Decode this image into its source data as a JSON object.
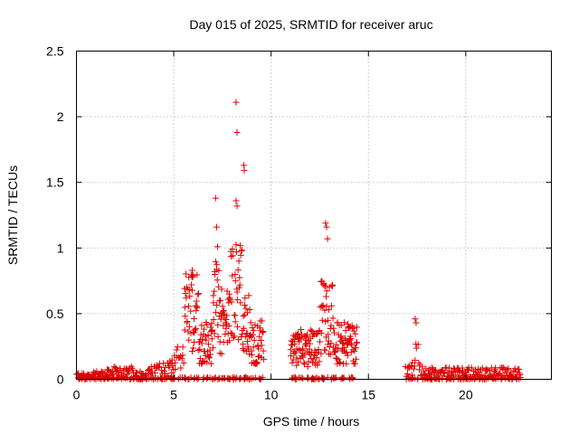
{
  "chart_data": {
    "type": "scatter",
    "title": "Day 015 of 2025, SRMTID for receiver aruc",
    "xlabel": "GPS time / hours",
    "ylabel": "SRMTID / TECUs",
    "xlim": [
      0,
      24.4
    ],
    "ylim": [
      0,
      2.5
    ],
    "xticks": [
      0,
      5,
      10,
      15,
      20
    ],
    "xtick_labels": [
      "0",
      "5",
      "10",
      "15",
      "20"
    ],
    "yticks": [
      0,
      0.5,
      1,
      1.5,
      2,
      2.5
    ],
    "ytick_labels": [
      "0",
      "0.5",
      "1",
      "1.5",
      "2",
      "2.5"
    ],
    "grid": true,
    "marker": "+",
    "series": [
      {
        "name": "SRMTID",
        "color": "#e00000",
        "segments": [
          {
            "x_start": 0.0,
            "x_end": 9.6,
            "note": "dense coverage"
          },
          {
            "x_start": 11.0,
            "x_end": 14.4,
            "note": "dense coverage"
          },
          {
            "x_start": 16.9,
            "x_end": 22.8,
            "note": "dense coverage"
          }
        ],
        "notable_points": [
          {
            "x": 8.2,
            "y": 2.11
          },
          {
            "x": 8.25,
            "y": 1.88
          },
          {
            "x": 8.6,
            "y": 1.63
          },
          {
            "x": 8.62,
            "y": 1.59
          },
          {
            "x": 7.15,
            "y": 1.38
          },
          {
            "x": 8.2,
            "y": 1.36
          },
          {
            "x": 8.25,
            "y": 1.32
          },
          {
            "x": 12.8,
            "y": 1.19
          },
          {
            "x": 12.85,
            "y": 1.16
          },
          {
            "x": 12.9,
            "y": 1.07
          },
          {
            "x": 7.2,
            "y": 1.16
          },
          {
            "x": 7.25,
            "y": 1.01
          },
          {
            "x": 17.4,
            "y": 0.46
          },
          {
            "x": 17.45,
            "y": 0.43
          },
          {
            "x": 5.95,
            "y": 0.83
          },
          {
            "x": 6.0,
            "y": 0.79
          }
        ]
      }
    ]
  }
}
